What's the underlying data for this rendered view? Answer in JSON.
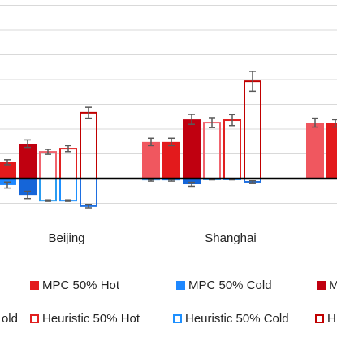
{
  "chart_data": {
    "type": "bar",
    "categories": [
      "Beijing",
      "Shanghai",
      null
    ],
    "ylim": [
      -1,
      7
    ],
    "yticks": [
      -1,
      0,
      1,
      2,
      3,
      4,
      5,
      6,
      7
    ],
    "grid": true,
    "series": [
      {
        "color": "#f0575f",
        "fill": true,
        "values": [
          null,
          1.48,
          2.26
        ],
        "errors": [
          null,
          0.15,
          0.18
        ]
      },
      {
        "color": "#4aa3f0",
        "fill": true,
        "values": [
          null,
          -0.07,
          null
        ],
        "errors": [
          null,
          0.03,
          null
        ]
      },
      {
        "name": "MPC 50% Hot",
        "color": "#e31a1c",
        "fill": true,
        "values": [
          0.66,
          1.48,
          2.23
        ],
        "errors": [
          0.1,
          0.15,
          0.15
        ]
      },
      {
        "name": "MPC 50% Cold",
        "color": "#1e88ff",
        "fill": true,
        "values": [
          -0.26,
          -0.07,
          null
        ],
        "errors": [
          0.12,
          0.03,
          null
        ]
      },
      {
        "name": "M",
        "color": "#c00010",
        "fill": true,
        "values": [
          1.41,
          2.39,
          null
        ],
        "errors": [
          0.15,
          0.2,
          null
        ]
      },
      {
        "name": "old",
        "color": "#1565d8",
        "fill": true,
        "values": [
          -0.66,
          -0.23,
          null
        ],
        "errors": [
          0.15,
          0.08,
          null
        ]
      },
      {
        "color": "#f0646e",
        "fill": false,
        "values": [
          1.08,
          2.26,
          null
        ],
        "errors": [
          0.1,
          0.2,
          null
        ]
      },
      {
        "color": "#2b9cf0",
        "fill": false,
        "values": [
          -0.89,
          -0.03,
          null
        ],
        "errors": [
          0.03,
          0.02,
          null
        ]
      },
      {
        "name": "Heuristic 50% Hot",
        "color": "#e02020",
        "fill": false,
        "values": [
          1.21,
          2.36,
          null
        ],
        "errors": [
          0.12,
          0.22,
          null
        ]
      },
      {
        "name": "Heuristic 50% Cold",
        "color": "#1e90ff",
        "fill": false,
        "values": [
          -0.89,
          -0.03,
          null
        ],
        "errors": [
          0.03,
          0.02,
          null
        ]
      },
      {
        "name": "H",
        "color": "#c00000",
        "fill": false,
        "values": [
          2.66,
          3.93,
          null
        ],
        "errors": [
          0.22,
          0.4,
          null
        ]
      },
      {
        "color": "#1e6fe0",
        "fill": false,
        "values": [
          -1.11,
          -0.13,
          null
        ],
        "errors": [
          0.07,
          0.04,
          null
        ]
      }
    ]
  }
}
